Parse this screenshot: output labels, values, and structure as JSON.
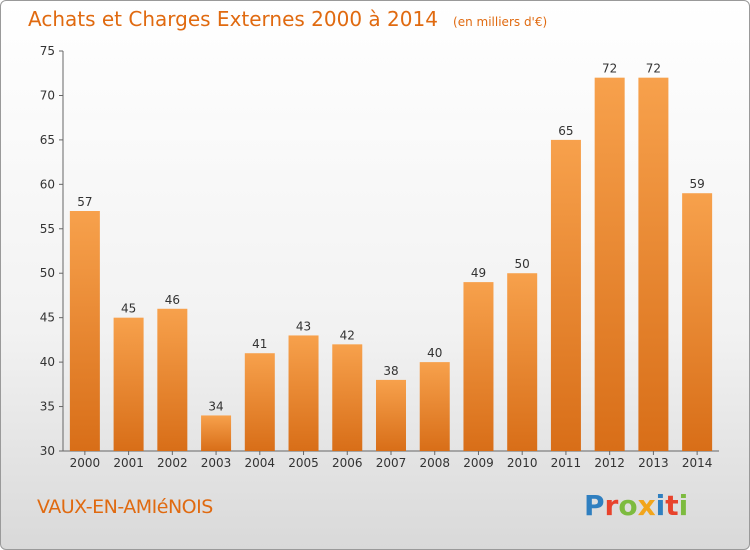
{
  "header": {
    "title": "Achats et Charges Externes 2000 à 2014",
    "subtitle": "(en milliers d'€)"
  },
  "footer": {
    "commune": "VAUX-EN-AMIéNOIS",
    "logo": "Proxiti"
  },
  "colors": {
    "bar_light": "#f7a14c",
    "bar_dark": "#d86e18",
    "title": "#e06a10",
    "logo_letters": [
      "#2f7fc0",
      "#e8432c",
      "#7dbb3f",
      "#f2a51b",
      "#2f7fc0",
      "#e8432c",
      "#7dbb3f"
    ]
  },
  "chart_data": {
    "type": "bar",
    "categories": [
      "2000",
      "2001",
      "2002",
      "2003",
      "2004",
      "2005",
      "2006",
      "2007",
      "2008",
      "2009",
      "2010",
      "2011",
      "2012",
      "2013",
      "2014"
    ],
    "values": [
      57,
      45,
      46,
      34,
      41,
      43,
      42,
      38,
      40,
      49,
      50,
      65,
      72,
      72,
      59
    ],
    "title": "Achats et Charges Externes 2000 à 2014",
    "ylim": [
      30,
      75
    ],
    "yticks": [
      30,
      35,
      40,
      45,
      50,
      55,
      60,
      65,
      70,
      75
    ],
    "grid": false,
    "data_labels": true
  }
}
